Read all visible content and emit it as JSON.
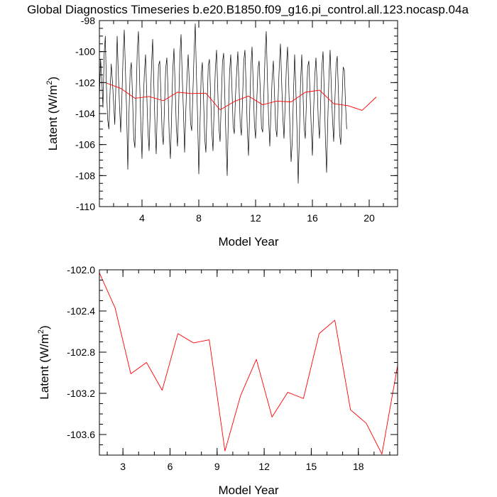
{
  "title": "Global Diagnostics Timeseries b.e20.B1850.f09_g16.pi_control.all.123.nocasp.04a",
  "colors": {
    "monthly": "#000000",
    "annual": "#ff0000",
    "frame": "#000000"
  },
  "chart_data": [
    {
      "type": "line",
      "xlabel": "Model Year",
      "ylabel_main": "Latent (W/m",
      "ylabel_sup": "2",
      "ylabel_close": ")",
      "xlim": [
        1,
        22
      ],
      "ylim": [
        -110,
        -98
      ],
      "xticks": [
        4,
        8,
        12,
        16,
        20
      ],
      "yticks": [
        -110,
        -108,
        -106,
        -104,
        -102,
        -100,
        -98
      ],
      "xminor_step": 1,
      "yminor_step": 0.5,
      "xticklabels": [
        "4",
        "8",
        "12",
        "16",
        "20"
      ],
      "yticklabels": [
        "-110",
        "-108",
        "-106",
        "-104",
        "-102",
        "-100",
        "-98"
      ],
      "series": [
        {
          "role": "monthly",
          "x_start": 1.0,
          "x_step": 0.08333,
          "values": [
            -103.0,
            -100.5,
            -101.8,
            -103.6,
            -100.2,
            -99.0,
            -102.4,
            -104.4,
            -105.0,
            -102.6,
            -100.8,
            -101.9,
            -103.3,
            -104.7,
            -102.0,
            -99.0,
            -101.4,
            -103.5,
            -105.2,
            -103.0,
            -100.3,
            -98.6,
            -101.2,
            -103.8,
            -107.6,
            -104.0,
            -101.3,
            -100.7,
            -102.9,
            -105.6,
            -106.2,
            -103.1,
            -99.9,
            -98.7,
            -101.9,
            -104.6,
            -106.9,
            -103.4,
            -101.4,
            -100.2,
            -102.7,
            -105.1,
            -106.4,
            -103.7,
            -101.0,
            -99.2,
            -102.1,
            -104.8,
            -106.6,
            -103.5,
            -100.9,
            -100.6,
            -102.8,
            -105.2,
            -106.0,
            -103.6,
            -101.1,
            -100.4,
            -102.5,
            -105.4,
            -106.9,
            -104.2,
            -101.2,
            -99.8,
            -102.2,
            -104.9,
            -106.1,
            -103.5,
            -100.3,
            -98.9,
            -101.6,
            -103.8,
            -106.5,
            -103.9,
            -101.7,
            -100.2,
            -102.0,
            -104.6,
            -105.1,
            -102.7,
            -100.1,
            -98.2,
            -101.5,
            -104.3,
            -107.9,
            -104.8,
            -101.5,
            -100.7,
            -103.0,
            -105.6,
            -106.5,
            -103.6,
            -100.9,
            -100.5,
            -102.8,
            -105.1,
            -106.4,
            -103.5,
            -101.1,
            -99.9,
            -102.4,
            -104.9,
            -105.8,
            -103.2,
            -100.7,
            -100.1,
            -102.9,
            -105.7,
            -108.0,
            -104.1,
            -101.3,
            -100.2,
            -102.3,
            -104.8,
            -105.3,
            -102.9,
            -101.3,
            -100.0,
            -102.2,
            -104.7,
            -105.4,
            -103.0,
            -100.6,
            -99.9,
            -102.3,
            -105.0,
            -106.7,
            -103.9,
            -101.0,
            -99.7,
            -102.1,
            -104.7,
            -105.6,
            -103.2,
            -101.1,
            -100.6,
            -102.6,
            -104.9,
            -105.2,
            -102.7,
            -100.2,
            -98.7,
            -101.8,
            -104.3,
            -106.1,
            -103.8,
            -101.7,
            -100.6,
            -102.8,
            -104.9,
            -105.5,
            -103.1,
            -101.0,
            -99.5,
            -101.9,
            -104.2,
            -105.6,
            -103.4,
            -101.0,
            -99.7,
            -102.1,
            -104.8,
            -107.1,
            -105.8,
            -102.8,
            -100.2,
            -102.4,
            -105.0,
            -108.5,
            -105.5,
            -102.0,
            -100.2,
            -102.6,
            -104.9,
            -105.6,
            -103.1,
            -101.0,
            -100.6,
            -102.7,
            -104.8,
            -106.7,
            -103.9,
            -101.6,
            -100.4,
            -102.0,
            -104.5,
            -105.6,
            -103.2,
            -101.0,
            -100.0,
            -102.5,
            -105.6,
            -107.8,
            -104.5,
            -101.6,
            -99.9,
            -102.3,
            -104.4,
            -105.8,
            -103.2,
            -100.9,
            -100.3,
            -102.6,
            -105.3,
            -106.0,
            -103.4,
            -101.0,
            -101.2,
            -103.4,
            -105.0
          ]
        },
        {
          "role": "annual",
          "x": [
            1.5,
            2.5,
            3.5,
            4.5,
            5.5,
            6.5,
            7.5,
            8.5,
            9.5,
            10.5,
            11.5,
            12.5,
            13.5,
            14.5,
            15.5,
            16.5,
            17.5,
            18.5,
            19.5,
            20.5
          ],
          "values": [
            -102.03,
            -102.37,
            -103.01,
            -102.9,
            -103.17,
            -102.62,
            -102.71,
            -102.68,
            -103.76,
            -103.22,
            -102.87,
            -103.43,
            -103.19,
            -103.25,
            -102.62,
            -102.49,
            -103.36,
            -103.49,
            -103.79,
            -102.93
          ]
        }
      ]
    },
    {
      "type": "line",
      "xlabel": "Model Year",
      "ylabel_main": "Latent (W/m",
      "ylabel_sup": "2",
      "ylabel_close": ")",
      "xlim": [
        1.5,
        20.5
      ],
      "ylim": [
        -103.8,
        -102.0
      ],
      "xticks": [
        3,
        6,
        9,
        12,
        15,
        18
      ],
      "yticks": [
        -103.6,
        -103.2,
        -102.8,
        -102.4,
        -102.0
      ],
      "xminor_step": 1,
      "yminor_step": 0.1,
      "xticklabels": [
        "3",
        "6",
        "9",
        "12",
        "15",
        "18"
      ],
      "yticklabels": [
        "-103.6",
        "-103.2",
        "-102.8",
        "-102.4",
        "-102.0"
      ],
      "series": [
        {
          "role": "annual",
          "x": [
            1.5,
            2.5,
            3.5,
            4.5,
            5.5,
            6.5,
            7.5,
            8.5,
            9.5,
            10.5,
            11.5,
            12.5,
            13.5,
            14.5,
            15.5,
            16.5,
            17.5,
            18.5,
            19.5,
            20.5
          ],
          "values": [
            -102.03,
            -102.37,
            -103.01,
            -102.9,
            -103.17,
            -102.62,
            -102.71,
            -102.68,
            -103.76,
            -103.22,
            -102.87,
            -103.43,
            -103.19,
            -103.25,
            -102.62,
            -102.49,
            -103.36,
            -103.49,
            -103.79,
            -102.93
          ]
        }
      ]
    }
  ]
}
